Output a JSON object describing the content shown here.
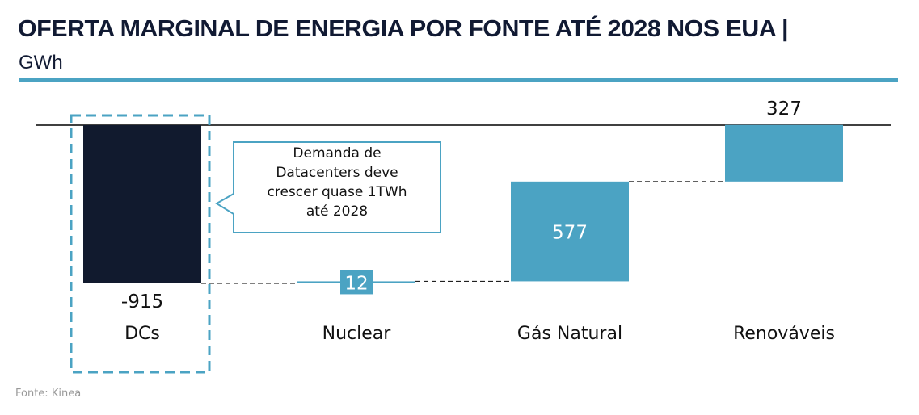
{
  "chart_data": {
    "type": "waterfall",
    "title": "OFERTA MARGINAL DE ENERGIA POR FONTE ATÉ 2028 NOS EUA |",
    "unit": "GWh",
    "categories": [
      "DCs",
      "Nuclear",
      "Gás Natural",
      "Renováveis"
    ],
    "values": [
      -915,
      12,
      577,
      327
    ],
    "value_labels": [
      "-915",
      "12",
      "577",
      "327"
    ],
    "colors": {
      "negative": "#111a2e",
      "positive": "#4ba3c3",
      "accent": "#4ba3c3"
    },
    "annotation": [
      "Demanda de",
      "Datacenters deve",
      "crescer quase 1TWh",
      "até 2028"
    ],
    "source": "Fonte: Kinea"
  }
}
